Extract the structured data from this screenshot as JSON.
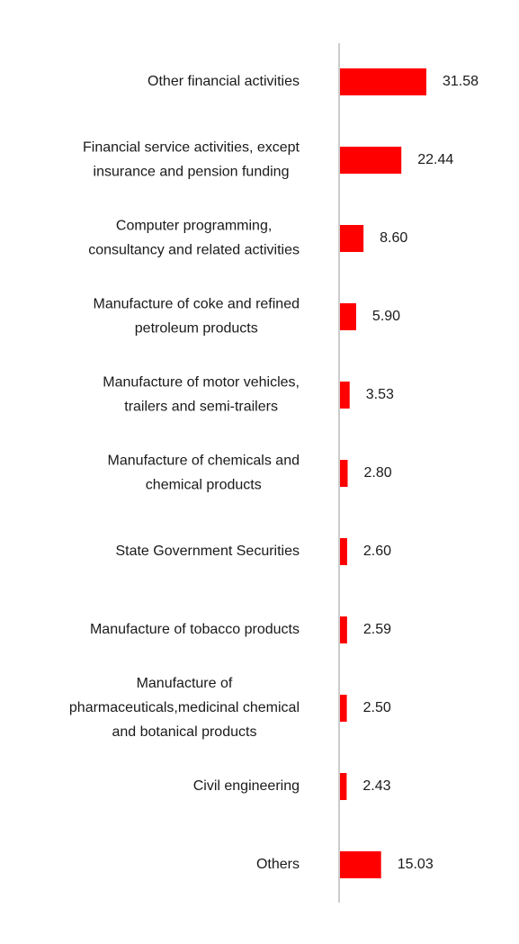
{
  "chart_data": {
    "type": "bar",
    "orientation": "horizontal",
    "categories": [
      [
        "Other financial activities"
      ],
      [
        "Financial service activities, except",
        "insurance and pension funding"
      ],
      [
        "Computer programming,",
        "consultancy and related activities"
      ],
      [
        "Manufacture of coke and refined",
        "petroleum products"
      ],
      [
        "Manufacture of motor vehicles,",
        "trailers and semi-trailers"
      ],
      [
        "Manufacture of chemicals and",
        "chemical products"
      ],
      [
        "State Government Securities"
      ],
      [
        "Manufacture of tobacco products"
      ],
      [
        "Manufacture of",
        "pharmaceuticals,medicinal chemical",
        "and botanical products"
      ],
      [
        "Civil engineering"
      ],
      [
        "Others"
      ]
    ],
    "values": [
      31.58,
      22.44,
      8.6,
      5.9,
      3.53,
      2.8,
      2.6,
      2.59,
      2.5,
      2.43,
      15.03
    ],
    "value_labels": [
      "31.58",
      "22.44",
      "8.60",
      "5.90",
      "3.53",
      "2.80",
      "2.60",
      "2.59",
      "2.50",
      "2.43",
      "15.03"
    ],
    "bar_color": "#ff0000",
    "axis_color": "#cccccc",
    "grid": false,
    "legend": "none"
  }
}
